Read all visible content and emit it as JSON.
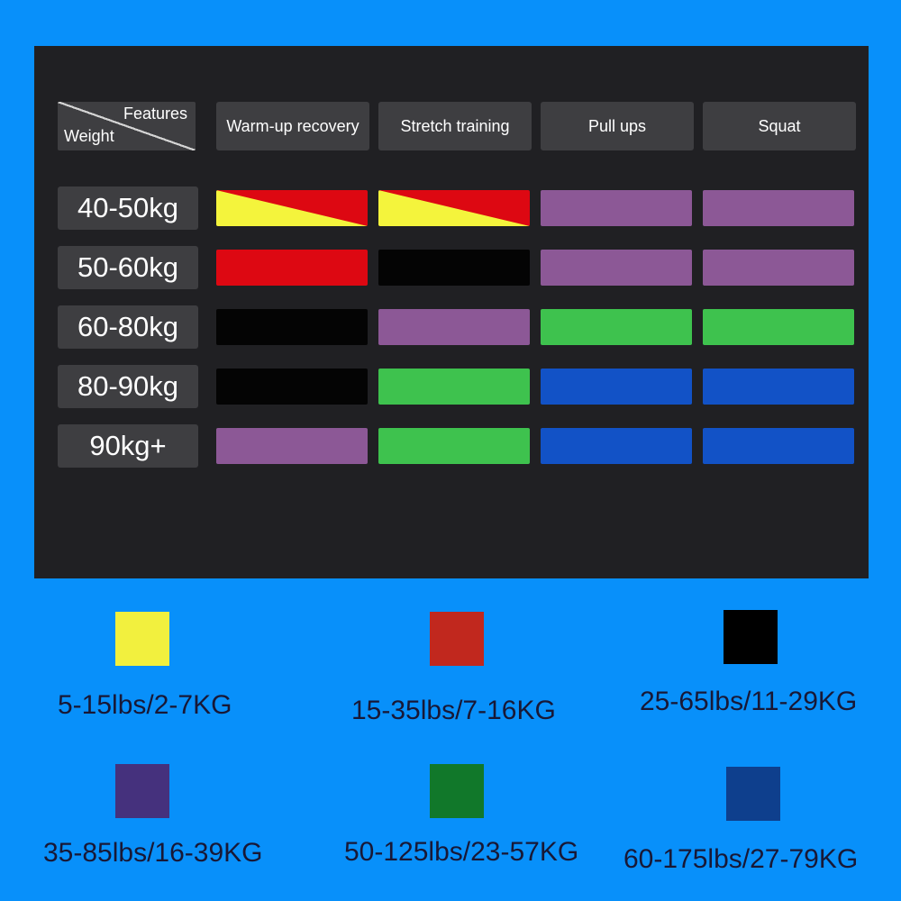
{
  "table": {
    "corner": {
      "features": "Features",
      "weight": "Weight"
    },
    "columns": [
      "Warm-up recovery",
      "Stretch training",
      "Pull ups",
      "Squat"
    ],
    "rows": [
      {
        "label": "40-50kg",
        "cells": [
          "yellow-red",
          "yellow-red",
          "purple",
          "purple"
        ]
      },
      {
        "label": "50-60kg",
        "cells": [
          "red",
          "black",
          "purple",
          "purple"
        ]
      },
      {
        "label": "60-80kg",
        "cells": [
          "black",
          "purple",
          "green",
          "green"
        ]
      },
      {
        "label": "80-90kg",
        "cells": [
          "black",
          "green",
          "blue",
          "blue"
        ]
      },
      {
        "label": "90kg+",
        "cells": [
          "purple",
          "green",
          "blue",
          "blue"
        ]
      }
    ]
  },
  "legend": [
    {
      "color_name": "yellow",
      "swatch": "#f2f03e",
      "label": "5-15lbs/2-7KG"
    },
    {
      "color_name": "red",
      "swatch": "#c1281e",
      "label": "15-35lbs/7-16KG"
    },
    {
      "color_name": "black",
      "swatch": "#000000",
      "label": "25-65lbs/11-29KG"
    },
    {
      "color_name": "purple",
      "swatch": "#45317d",
      "label": "35-85lbs/16-39KG"
    },
    {
      "color_name": "green",
      "swatch": "#11782a",
      "label": "50-125lbs/23-57KG"
    },
    {
      "color_name": "blue",
      "swatch": "#0e3f8d",
      "label": "60-175lbs/27-79KG"
    }
  ],
  "colors": {
    "background": "#0890fa",
    "panel": "#202023",
    "cell_gray": "#3e3e41",
    "bar_yellow": "#f4f43c",
    "bar_red": "#dd0812",
    "bar_black": "#040404",
    "bar_purple": "#8c5896",
    "bar_green": "#3ec24e",
    "bar_blue": "#1252c6",
    "legend_text": "#181836"
  },
  "chart_data": {
    "type": "heatmap",
    "title": "",
    "x_categories": [
      "Warm-up recovery",
      "Stretch training",
      "Pull ups",
      "Squat"
    ],
    "y_categories": [
      "40-50kg",
      "50-60kg",
      "60-80kg",
      "80-90kg",
      "90kg+"
    ],
    "cell_values": [
      [
        "yellow+red",
        "yellow+red",
        "purple",
        "purple"
      ],
      [
        "red",
        "black",
        "purple",
        "purple"
      ],
      [
        "black",
        "purple",
        "green",
        "green"
      ],
      [
        "black",
        "green",
        "blue",
        "blue"
      ],
      [
        "purple",
        "green",
        "blue",
        "blue"
      ]
    ],
    "legend_entries": [
      {
        "color": "yellow",
        "label": "5-15lbs/2-7KG"
      },
      {
        "color": "red",
        "label": "15-35lbs/7-16KG"
      },
      {
        "color": "black",
        "label": "25-65lbs/11-29KG"
      },
      {
        "color": "purple",
        "label": "35-85lbs/16-39KG"
      },
      {
        "color": "green",
        "label": "50-125lbs/23-57KG"
      },
      {
        "color": "blue",
        "label": "60-175lbs/27-79KG"
      }
    ],
    "legend_position": "bottom",
    "grid": false
  }
}
